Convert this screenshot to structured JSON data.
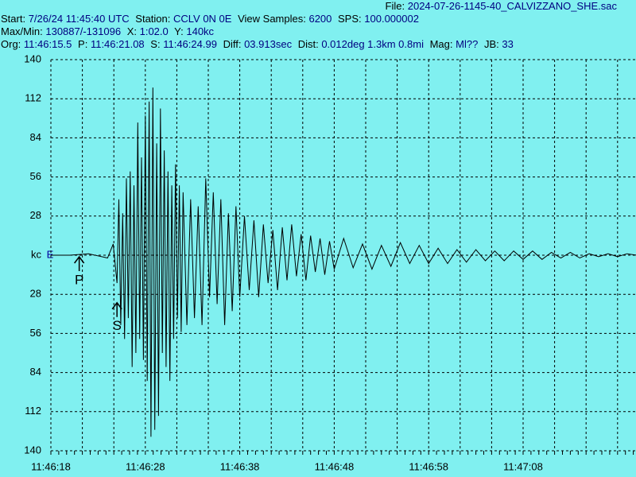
{
  "header": {
    "file": {
      "label": "File:",
      "value": "2024-07-26-1145-40_CALVIZZANO_SHE.sac"
    },
    "lines": [
      [
        {
          "label": "Start:",
          "value": "7/26/24 11:45:40 UTC"
        },
        {
          "label": "Station:",
          "value": "CCLV 0N 0E"
        },
        {
          "label": "View Samples:",
          "value": "6200"
        },
        {
          "label": "SPS:",
          "value": "100.000002"
        }
      ],
      [
        {
          "label": "Max/Min:",
          "value": "130887/-131096"
        },
        {
          "label": "X:",
          "value": "1:02.0"
        },
        {
          "label": "Y:",
          "value": "140kc"
        }
      ],
      [
        {
          "label": "Org:",
          "value": "11:46:15.5"
        },
        {
          "label": "P:",
          "value": "11:46:21.08"
        },
        {
          "label": "S:",
          "value": "11:46:24.99"
        },
        {
          "label": "Diff:",
          "value": "03.913sec"
        },
        {
          "label": "Dist:",
          "value": "0.012deg 1.3km 0.8mi"
        },
        {
          "label": "Mag:",
          "value": "Ml??"
        },
        {
          "label": "JB:",
          "value": "33"
        }
      ]
    ]
  },
  "plot": {
    "channel": "E",
    "ylim": [
      -140,
      140
    ],
    "yticks": [
      {
        "value": 140,
        "label": "140"
      },
      {
        "value": 112,
        "label": "112"
      },
      {
        "value": 84,
        "label": "84"
      },
      {
        "value": 56,
        "label": "56"
      },
      {
        "value": 28,
        "label": "28"
      },
      {
        "value": 0,
        "label": "kc"
      },
      {
        "value": -28,
        "label": "28"
      },
      {
        "value": -56,
        "label": "56"
      },
      {
        "value": -84,
        "label": "84"
      },
      {
        "value": -112,
        "label": "112"
      },
      {
        "value": -140,
        "label": "140"
      }
    ],
    "xlim": [
      0,
      62
    ],
    "xticks": [
      {
        "value": 0,
        "label": "11:46:18"
      },
      {
        "value": 10,
        "label": "11:46:28"
      },
      {
        "value": 20,
        "label": "11:46:38"
      },
      {
        "value": 30,
        "label": "11:46:48"
      },
      {
        "value": 40,
        "label": "11:46:58"
      },
      {
        "value": 50,
        "label": "11:47:08"
      }
    ],
    "markers": [
      {
        "label": "P",
        "x": 3
      },
      {
        "label": "S",
        "x": 7
      }
    ],
    "trace": {
      "x": [
        0,
        2,
        4,
        6,
        6.6,
        7.0,
        7.2,
        7.4,
        7.6,
        7.8,
        8.0,
        8.2,
        8.4,
        8.6,
        8.8,
        9.0,
        9.2,
        9.4,
        9.6,
        9.8,
        10.0,
        10.2,
        10.4,
        10.6,
        10.8,
        11.0,
        11.2,
        11.4,
        11.6,
        11.8,
        12.0,
        12.2,
        12.4,
        12.6,
        12.8,
        13.0,
        13.2,
        13.4,
        13.6,
        13.8,
        14.0,
        14.4,
        14.8,
        15.2,
        15.6,
        16.0,
        16.4,
        16.8,
        17.2,
        17.6,
        18.0,
        18.4,
        18.8,
        19.2,
        19.6,
        20.0,
        20.5,
        21,
        21.5,
        22,
        22.5,
        23,
        23.5,
        24,
        24.5,
        25,
        25.5,
        26,
        26.5,
        27,
        27.5,
        28,
        28.5,
        29,
        29.5,
        30,
        31,
        32,
        33,
        34,
        35,
        36,
        37,
        38,
        39,
        40,
        41,
        42,
        43,
        44,
        45,
        46,
        47,
        48,
        49,
        50,
        51,
        52,
        53,
        54,
        55,
        56,
        57,
        58,
        59,
        60,
        61,
        62
      ],
      "values": [
        0,
        0,
        1,
        -2,
        8,
        -20,
        40,
        -50,
        30,
        -60,
        55,
        -45,
        60,
        -80,
        50,
        -70,
        95,
        -60,
        70,
        -75,
        100,
        -90,
        110,
        -130,
        120,
        -125,
        80,
        -115,
        105,
        -70,
        75,
        -80,
        60,
        -90,
        50,
        -60,
        65,
        -45,
        50,
        -55,
        45,
        -50,
        40,
        -45,
        35,
        -50,
        55,
        -30,
        45,
        -35,
        40,
        -50,
        30,
        -40,
        35,
        -30,
        28,
        -25,
        25,
        -30,
        22,
        -20,
        18,
        -25,
        20,
        -18,
        22,
        -15,
        15,
        -18,
        14,
        -12,
        12,
        -14,
        10,
        -10,
        12,
        -9,
        8,
        -10,
        7,
        -8,
        9,
        -6,
        7,
        -6,
        5,
        -6,
        4,
        -5,
        4,
        -4,
        3,
        -4,
        3,
        -3,
        3,
        -3,
        2,
        -2,
        2,
        -2,
        1,
        -1,
        1,
        -1,
        1,
        0
      ]
    }
  }
}
